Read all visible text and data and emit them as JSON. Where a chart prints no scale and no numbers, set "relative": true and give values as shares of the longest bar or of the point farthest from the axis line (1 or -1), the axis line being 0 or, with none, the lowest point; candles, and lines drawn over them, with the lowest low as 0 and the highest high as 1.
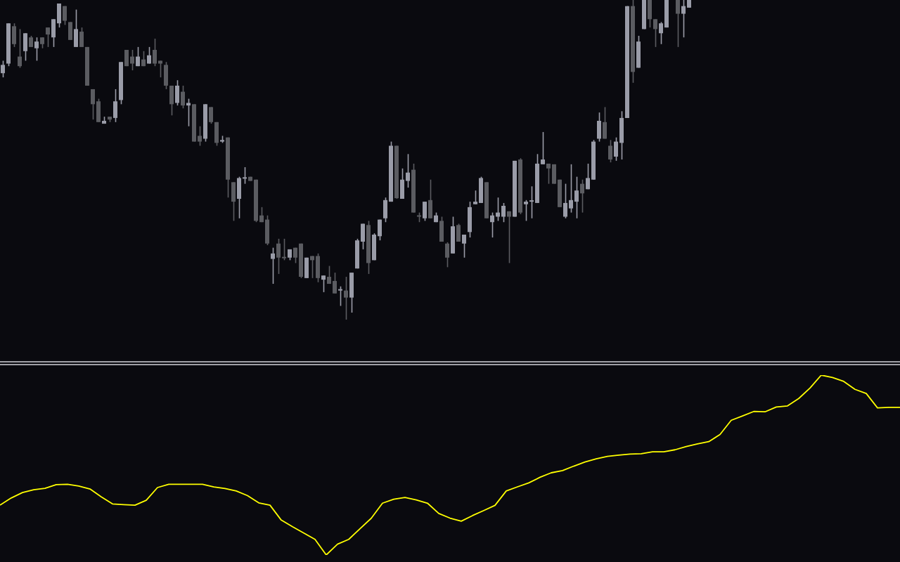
{
  "chart_data": [
    {
      "type": "candlestick",
      "relative": true,
      "colors": [
        "#9a9ca8",
        "#9a9ca8",
        "#5b5c61",
        "#5b5c61",
        "#9a9ca8",
        "#5b5c61",
        "#9a9ca8",
        "#5b5c61",
        "#5b5c61",
        "#9a9ca8",
        "#9a9ca8",
        "#5b5c61",
        "#5b5c61",
        "#9a9ca8",
        "#5b5c61",
        "#5b5c61",
        "#5b5c61",
        "#5b5c61",
        "#9a9ca8",
        "#5b5c61",
        "#9a9ca8",
        "#9a9ca8",
        "#5b5c61",
        "#5b5c61",
        "#9a9ca8",
        "#5b5c61",
        "#9a9ca8",
        "#5b5c61",
        "#5b5c61",
        "#5b5c61",
        "#5b5c61",
        "#9a9ca8",
        "#5b5c61",
        "#9a9ca8",
        "#5b5c61",
        "#5b5c61",
        "#9a9ca8",
        "#5b5c61",
        "#5b5c61",
        "#9a9ca8",
        "#5b5c61",
        "#5b5c61",
        "#9a9ca8",
        "#9a9ca8",
        "#5b5c61",
        "#5b5c61",
        "#5b5c61",
        "#5b5c61",
        "#9a9ca8",
        "#5b5c61",
        "#5b5c61",
        "#9a9ca8",
        "#5b5c61",
        "#5b5c61",
        "#9a9ca8",
        "#5b5c61",
        "#5b5c61",
        "#9a9ca8",
        "#5b5c61",
        "#5b5c61",
        "#9a9ca8",
        "#5b5c61",
        "#9a9ca8",
        "#9a9ca8",
        "#9a9ca8",
        "#5b5c61",
        "#9a9ca8",
        "#9a9ca8",
        "#9a9ca8",
        "#9a9ca8",
        "#5b5c61",
        "#9a9ca8",
        "#9a9ca8",
        "#5b5c61",
        "#5b5c61",
        "#9a9ca8",
        "#5b5c61",
        "#9a9ca8",
        "#5b5c61",
        "#5b5c61",
        "#9a9ca8",
        "#5b5c61",
        "#9a9ca8",
        "#9a9ca8",
        "#9a9ca8",
        "#9a9ca8",
        "#5b5c61",
        "#9a9ca8",
        "#9a9ca8",
        "#9a9ca8",
        "#5b5c61",
        "#9a9ca8",
        "#5b5c61",
        "#9a9ca8",
        "#9a9ca8",
        "#9a9ca8",
        "#9a9ca8",
        "#5b5c61",
        "#5b5c61",
        "#5b5c61",
        "#9a9ca8",
        "#9a9ca8",
        "#9a9ca8",
        "#5b5c61",
        "#9a9ca8",
        "#9a9ca8",
        "#9a9ca8",
        "#5b5c61",
        "#5b5c61",
        "#9a9ca8",
        "#9a9ca8",
        "#9a9ca8",
        "#5b5c61",
        "#9a9ca8",
        "#9a9ca8",
        "#5b5c61",
        "#5b5c61",
        "#9a9ca8",
        "#9a9ca8",
        null,
        "#5b5c61",
        "#9a9ca8",
        "#9a9ca8",
        null,
        null,
        null,
        null,
        null,
        null,
        null,
        null,
        null,
        null,
        null,
        null,
        null,
        null,
        null,
        null,
        null,
        null,
        null,
        null,
        null,
        null,
        null,
        null,
        null,
        null,
        null,
        null,
        null,
        null,
        null,
        null,
        null,
        null,
        null,
        null,
        null
      ],
      "categories": [
        null,
        null,
        null,
        null,
        null,
        null,
        null,
        null,
        null,
        null,
        null,
        null,
        null,
        null,
        null,
        null,
        null,
        null,
        null,
        null,
        null,
        null,
        null,
        null,
        null,
        null,
        null,
        null,
        null,
        null,
        null,
        null,
        null,
        null,
        null,
        null,
        null,
        null,
        null,
        null,
        null,
        null,
        null,
        null,
        null,
        null,
        null,
        null,
        null,
        null,
        null,
        null,
        null,
        null,
        null,
        null,
        null,
        null,
        null,
        null,
        null,
        null,
        null,
        null,
        null,
        null,
        null,
        null,
        null,
        null,
        null,
        null,
        null,
        null,
        null,
        null,
        null,
        null,
        null,
        null,
        null,
        null,
        null,
        null,
        null,
        null,
        null,
        null,
        null,
        null,
        null,
        null,
        null,
        null,
        null,
        null,
        null,
        null,
        null,
        null,
        null,
        null,
        null,
        null,
        null,
        null,
        null,
        null,
        null,
        null,
        null,
        null,
        null,
        null,
        null,
        null,
        null,
        null,
        null,
        null,
        null,
        null,
        null,
        null,
        null,
        null,
        null,
        null,
        null,
        null,
        null,
        null,
        null,
        null,
        null,
        null,
        null,
        null,
        null,
        null,
        null,
        null,
        null,
        null,
        null,
        null,
        null,
        null,
        null,
        null,
        null,
        null,
        null,
        null,
        null,
        null,
        null,
        null,
        null,
        null
      ],
      "ohlc": [
        [
          0.771,
          0.81,
          0.758,
          0.797
        ],
        [
          0.801,
          0.927,
          0.793,
          0.927
        ],
        [
          0.918,
          0.927,
          0.853,
          0.862
        ],
        [
          0.823,
          0.909,
          0.788,
          0.793
        ],
        [
          0.84,
          0.896,
          0.81,
          0.896
        ],
        [
          0.883,
          0.888,
          0.853,
          0.853
        ],
        [
          0.849,
          0.883,
          0.81,
          0.87
        ],
        [
          0.883,
          0.883,
          0.849,
          0.862
        ],
        [
          0.914,
          0.914,
          0.853,
          0.892
        ],
        [
          0.883,
          0.94,
          0.853,
          0.94
        ],
        [
          0.927,
          0.989,
          0.914,
          0.989
        ],
        [
          0.981,
          0.981,
          0.922,
          0.935
        ],
        [
          0.931,
          0.931,
          0.875,
          0.875
        ],
        [
          0.853,
          0.97,
          0.853,
          0.909
        ],
        [
          0.901,
          0.914,
          0.853,
          0.853
        ],
        [
          0.853,
          0.853,
          0.732,
          0.732
        ],
        [
          0.721,
          0.721,
          0.626,
          0.674
        ],
        [
          0.683,
          0.691,
          0.618,
          0.618
        ],
        [
          0.613,
          0.635,
          0.613,
          0.622
        ],
        [
          0.635,
          0.635,
          0.618,
          0.626
        ],
        [
          0.631,
          0.721,
          0.618,
          0.683
        ],
        [
          0.687,
          0.806,
          0.674,
          0.806
        ],
        [
          0.844,
          0.844,
          0.793,
          0.793
        ],
        [
          0.823,
          0.844,
          0.78,
          0.801
        ],
        [
          0.793,
          0.853,
          0.793,
          0.823
        ],
        [
          0.814,
          0.84,
          0.793,
          0.793
        ],
        [
          0.801,
          0.853,
          0.801,
          0.827
        ],
        [
          0.844,
          0.879,
          0.793,
          0.801
        ],
        [
          0.81,
          0.81,
          0.758,
          0.801
        ],
        [
          0.797,
          0.806,
          0.721,
          0.732
        ],
        [
          0.732,
          0.732,
          0.639,
          0.674
        ],
        [
          0.678,
          0.749,
          0.67,
          0.732
        ],
        [
          0.713,
          0.732,
          0.661,
          0.67
        ],
        [
          0.67,
          0.691,
          0.605,
          0.678
        ],
        [
          0.674,
          0.674,
          0.557,
          0.557
        ],
        [
          0.575,
          0.605,
          0.544,
          0.557
        ],
        [
          0.566,
          0.674,
          0.557,
          0.674
        ],
        [
          0.665,
          0.665,
          0.613,
          0.618
        ],
        [
          0.618,
          0.618,
          0.544,
          0.553
        ],
        [
          0.557,
          0.575,
          0.553,
          0.562
        ],
        [
          0.57,
          0.57,
          0.382,
          0.438
        ],
        [
          0.43,
          0.43,
          0.309,
          0.369
        ],
        [
          0.378,
          0.447,
          0.317,
          0.443
        ],
        [
          0.441,
          0.477,
          0.425,
          0.443
        ],
        [
          0.447,
          0.447,
          0.434,
          0.434
        ],
        [
          0.438,
          0.438,
          0.305,
          0.309
        ],
        [
          0.326,
          0.352,
          0.305,
          0.305
        ],
        [
          0.313,
          0.326,
          0.233,
          0.238
        ],
        [
          0.19,
          0.225,
          0.112,
          0.207
        ],
        [
          0.238,
          0.253,
          0.143,
          0.194
        ],
        [
          0.194,
          0.253,
          0.186,
          0.192
        ],
        [
          0.194,
          0.22,
          0.186,
          0.22
        ],
        [
          0.225,
          0.225,
          0.177,
          0.194
        ],
        [
          0.238,
          0.238,
          0.13,
          0.134
        ],
        [
          0.13,
          0.194,
          0.13,
          0.194
        ],
        [
          0.199,
          0.199,
          0.13,
          0.186
        ],
        [
          0.199,
          0.207,
          0.117,
          0.13
        ],
        [
          0.125,
          0.138,
          0.086,
          0.138
        ],
        [
          0.134,
          0.168,
          0.112,
          0.112
        ],
        [
          0.121,
          0.147,
          0.082,
          0.082
        ],
        [
          0.091,
          0.104,
          0.043,
          0.093
        ],
        [
          0.091,
          0.134,
          0,
          0.069
        ],
        [
          0.069,
          0.147,
          0.022,
          0.147
        ],
        [
          0.16,
          0.253,
          0.16,
          0.248
        ],
        [
          0.244,
          0.3,
          0.22,
          0.3
        ],
        [
          0.296,
          0.309,
          0.143,
          0.177
        ],
        [
          0.186,
          0.27,
          0.186,
          0.266
        ],
        [
          0.261,
          0.313,
          0.248,
          0.313
        ],
        [
          0.317,
          0.382,
          0.305,
          0.374
        ],
        [
          0.369,
          0.557,
          0.369,
          0.544
        ],
        [
          0.544,
          0.544,
          0.378,
          0.38
        ],
        [
          0.378,
          0.473,
          0.378,
          0.438
        ],
        [
          0.434,
          0.518,
          0.413,
          0.46
        ],
        [
          0.469,
          0.488,
          0.335,
          0.335
        ],
        [
          0.324,
          0.335,
          0.305,
          0.322
        ],
        [
          0.317,
          0.369,
          0.309,
          0.369
        ],
        [
          0.374,
          0.438,
          0.317,
          0.317
        ],
        [
          0.305,
          0.335,
          0.305,
          0.326
        ],
        [
          0.309,
          0.322,
          0.244,
          0.244
        ],
        [
          0.238,
          0.242,
          0.164,
          0.194
        ],
        [
          0.207,
          0.322,
          0.207,
          0.292
        ],
        [
          0.296,
          0.3,
          0.244,
          0.244
        ],
        [
          0.238,
          0.266,
          0.194,
          0.266
        ],
        [
          0.274,
          0.369,
          0.257,
          0.352
        ],
        [
          0.361,
          0.404,
          0.361,
          0.369
        ],
        [
          0.365,
          0.447,
          0.365,
          0.443
        ],
        [
          0.43,
          0.43,
          0.317,
          0.317
        ],
        [
          0.305,
          0.335,
          0.257,
          0.326
        ],
        [
          0.322,
          0.382,
          0.309,
          0.335
        ],
        [
          0.322,
          0.365,
          0.305,
          0.356
        ],
        [
          0.339,
          0.339,
          0.177,
          0.322
        ],
        [
          0.322,
          0.497,
          0.322,
          0.497
        ],
        [
          0.501,
          0.505,
          0.33,
          0.335
        ],
        [
          0.361,
          0.374,
          0.309,
          0.369
        ],
        [
          0.369,
          0.417,
          0.317,
          0.371
        ],
        [
          0.365,
          0.518,
          0.365,
          0.488
        ],
        [
          0.486,
          0.587,
          0.486,
          0.501
        ],
        [
          0.488,
          0.488,
          0.425,
          0.473
        ],
        [
          0.486,
          0.486,
          0.425,
          0.425
        ],
        [
          0.438,
          0.438,
          0.352,
          0.352
        ],
        [
          0.322,
          0.425,
          0.317,
          0.365
        ],
        [
          0.348,
          0.486,
          0.335,
          0.374
        ],
        [
          0.369,
          0.447,
          0.317,
          0.404
        ],
        [
          0.425,
          0.438,
          0.335,
          0.395
        ],
        [
          0.408,
          0.488,
          0.408,
          0.443
        ],
        [
          0.438,
          0.562,
          0.438,
          0.557
        ],
        [
          0.566,
          0.648,
          0.557,
          0.622
        ],
        [
          0.618,
          0.665,
          0.566,
          0.566
        ],
        [
          0.544,
          0.562,
          0.492,
          0.501
        ],
        [
          0.51,
          0.57,
          0.497,
          0.557
        ],
        [
          0.553,
          0.652,
          0.501,
          0.631
        ],
        [
          0.631,
          0.981,
          0.631,
          0.981
        ],
        [
          0.981,
          1,
          0.741,
          0.775
        ],
        [
          0.788,
          0.888,
          0.788,
          0.87
        ],
        [
          0.909,
          1,
          0.909,
          1
        ],
        [
          1,
          1,
          0.914,
          0.94
        ],
        [
          0.94,
          0.94,
          0.853,
          0.909
        ],
        [
          0.896,
          0.931,
          0.862,
          0.927
        ],
        [
          0.914,
          1,
          0.914,
          1
        ],
        null,
        [
          1,
          1,
          0.853,
          0.957
        ],
        [
          0.957,
          1,
          0.883,
          0.981
        ],
        [
          0.976,
          1,
          0.976,
          1
        ],
        null,
        null,
        null,
        null,
        null,
        null,
        null,
        null,
        null,
        null,
        null,
        null,
        null,
        null,
        null,
        null,
        null,
        null,
        null,
        null,
        null,
        null,
        null,
        null,
        null,
        null,
        null,
        null,
        null,
        null,
        null,
        null,
        null,
        null,
        null,
        null,
        null
      ]
    },
    {
      "type": "line",
      "relative": true,
      "categories": [
        null,
        null,
        null,
        null,
        null,
        null,
        null,
        null,
        null,
        null,
        null,
        null,
        null,
        null,
        null,
        null,
        null,
        null,
        null,
        null,
        null,
        null,
        null,
        null,
        null,
        null,
        null,
        null,
        null,
        null,
        null,
        null,
        null,
        null,
        null,
        null,
        null,
        null,
        null,
        null,
        null,
        null,
        null,
        null,
        null,
        null,
        null,
        null,
        null,
        null,
        null,
        null,
        null,
        null,
        null,
        null,
        null,
        null,
        null,
        null,
        null,
        null,
        null,
        null,
        null,
        null,
        null,
        null,
        null,
        null,
        null,
        null,
        null,
        null,
        null,
        null,
        null,
        null,
        null,
        null,
        null
      ],
      "series": [
        {
          "color": "#ffff00",
          "values": [
            0.277,
            0.317,
            0.347,
            0.363,
            0.371,
            0.391,
            0.393,
            0.383,
            0.367,
            0.323,
            0.284,
            0.28,
            0.277,
            0.304,
            0.375,
            0.393,
            0.393,
            0.393,
            0.393,
            0.378,
            0.37,
            0.356,
            0.33,
            0.29,
            0.277,
            0.194,
            0.157,
            0.122,
            0.087,
            0,
            0.06,
            0.087,
            0.146,
            0.204,
            0.288,
            0.31,
            0.32,
            0.306,
            0.288,
            0.231,
            0.205,
            0.188,
            0.219,
            0.247,
            0.276,
            0.356,
            0.379,
            0.401,
            0.432,
            0.457,
            0.469,
            0.494,
            0.517,
            0.535,
            0.548,
            0.555,
            0.561,
            0.563,
            0.574,
            0.574,
            0.585,
            0.603,
            0.618,
            0.63,
            0.67,
            0.749,
            0.773,
            0.798,
            0.796,
            0.823,
            0.829,
            0.87,
            0.928,
            1,
            0.987,
            0.965,
            0.921,
            0.898,
            0.818,
            0.821,
            0.821
          ]
        }
      ]
    }
  ]
}
